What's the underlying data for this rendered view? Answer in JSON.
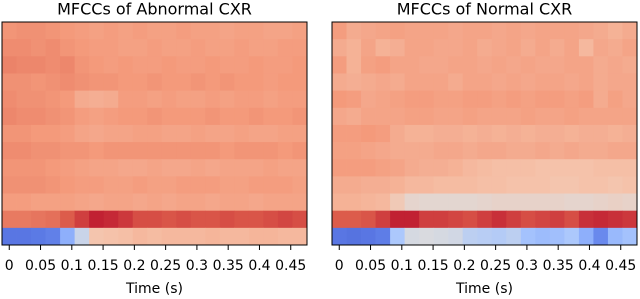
{
  "chart_data": [
    {
      "type": "heatmap",
      "title": "MFCCs of Abnormal CXR",
      "xlabel": "Time (s)",
      "colormap": "coolwarm",
      "clim": [
        0,
        1
      ],
      "xlim": [
        -0.0116,
        0.476
      ],
      "xticks": [
        0,
        0.05,
        0.1,
        0.15,
        0.2,
        0.25,
        0.3,
        0.35,
        0.4,
        0.45
      ],
      "values": [
        [
          0.76,
          0.77,
          0.77,
          0.76,
          0.75,
          0.74,
          0.73,
          0.74,
          0.73,
          0.74,
          0.73,
          0.73,
          0.74,
          0.73,
          0.73,
          0.72,
          0.73,
          0.73,
          0.72,
          0.72,
          0.73
        ],
        [
          0.78,
          0.78,
          0.77,
          0.78,
          0.76,
          0.75,
          0.74,
          0.74,
          0.73,
          0.73,
          0.74,
          0.73,
          0.73,
          0.74,
          0.73,
          0.73,
          0.74,
          0.73,
          0.73,
          0.74,
          0.74
        ],
        [
          0.8,
          0.79,
          0.79,
          0.78,
          0.79,
          0.76,
          0.75,
          0.74,
          0.75,
          0.74,
          0.74,
          0.75,
          0.74,
          0.74,
          0.75,
          0.74,
          0.74,
          0.75,
          0.74,
          0.74,
          0.75
        ],
        [
          0.77,
          0.77,
          0.76,
          0.77,
          0.78,
          0.77,
          0.76,
          0.76,
          0.75,
          0.75,
          0.76,
          0.75,
          0.75,
          0.76,
          0.75,
          0.76,
          0.75,
          0.75,
          0.74,
          0.75,
          0.75
        ],
        [
          0.78,
          0.77,
          0.77,
          0.76,
          0.75,
          0.7,
          0.69,
          0.7,
          0.74,
          0.74,
          0.73,
          0.74,
          0.73,
          0.73,
          0.74,
          0.73,
          0.74,
          0.74,
          0.73,
          0.74,
          0.74
        ],
        [
          0.79,
          0.78,
          0.78,
          0.77,
          0.76,
          0.74,
          0.73,
          0.74,
          0.75,
          0.75,
          0.76,
          0.75,
          0.75,
          0.75,
          0.76,
          0.75,
          0.75,
          0.76,
          0.75,
          0.75,
          0.76
        ],
        [
          0.76,
          0.76,
          0.75,
          0.75,
          0.74,
          0.72,
          0.71,
          0.72,
          0.72,
          0.73,
          0.73,
          0.72,
          0.72,
          0.73,
          0.72,
          0.72,
          0.73,
          0.72,
          0.72,
          0.73,
          0.73
        ],
        [
          0.78,
          0.78,
          0.77,
          0.77,
          0.76,
          0.76,
          0.75,
          0.76,
          0.76,
          0.76,
          0.76,
          0.76,
          0.76,
          0.76,
          0.76,
          0.75,
          0.76,
          0.76,
          0.76,
          0.75,
          0.76
        ],
        [
          0.76,
          0.76,
          0.76,
          0.75,
          0.74,
          0.73,
          0.72,
          0.72,
          0.71,
          0.71,
          0.72,
          0.71,
          0.71,
          0.72,
          0.71,
          0.72,
          0.72,
          0.72,
          0.73,
          0.72,
          0.72
        ],
        [
          0.77,
          0.77,
          0.77,
          0.76,
          0.75,
          0.74,
          0.74,
          0.73,
          0.73,
          0.74,
          0.73,
          0.73,
          0.74,
          0.74,
          0.74,
          0.73,
          0.73,
          0.74,
          0.74,
          0.74,
          0.73
        ],
        [
          0.74,
          0.74,
          0.73,
          0.73,
          0.73,
          0.72,
          0.71,
          0.72,
          0.72,
          0.71,
          0.72,
          0.71,
          0.72,
          0.72,
          0.71,
          0.72,
          0.72,
          0.71,
          0.72,
          0.72,
          0.72
        ],
        [
          0.82,
          0.82,
          0.83,
          0.84,
          0.88,
          0.92,
          0.96,
          0.95,
          0.93,
          0.9,
          0.9,
          0.89,
          0.9,
          0.89,
          0.89,
          0.9,
          0.89,
          0.89,
          0.9,
          0.91,
          0.9
        ],
        [
          0.12,
          0.12,
          0.13,
          0.15,
          0.3,
          0.45,
          0.62,
          0.63,
          0.64,
          0.66,
          0.65,
          0.66,
          0.66,
          0.66,
          0.67,
          0.66,
          0.66,
          0.67,
          0.67,
          0.66,
          0.66
        ]
      ]
    },
    {
      "type": "heatmap",
      "title": "MFCCs of Normal CXR",
      "xlabel": "Time (s)",
      "colormap": "coolwarm",
      "clim": [
        0,
        1
      ],
      "xlim": [
        -0.0116,
        0.476
      ],
      "xticks": [
        0,
        0.05,
        0.1,
        0.15,
        0.2,
        0.25,
        0.3,
        0.35,
        0.4,
        0.45
      ],
      "values": [
        [
          0.74,
          0.7,
          0.71,
          0.72,
          0.73,
          0.72,
          0.72,
          0.72,
          0.71,
          0.72,
          0.72,
          0.71,
          0.72,
          0.71,
          0.72,
          0.72,
          0.72,
          0.71,
          0.7,
          0.68,
          0.7
        ],
        [
          0.7,
          0.68,
          0.72,
          0.68,
          0.69,
          0.72,
          0.72,
          0.71,
          0.71,
          0.72,
          0.7,
          0.71,
          0.72,
          0.7,
          0.72,
          0.7,
          0.72,
          0.66,
          0.71,
          0.7,
          0.72
        ],
        [
          0.74,
          0.68,
          0.73,
          0.74,
          0.72,
          0.72,
          0.71,
          0.71,
          0.72,
          0.72,
          0.71,
          0.72,
          0.71,
          0.72,
          0.71,
          0.71,
          0.72,
          0.72,
          0.7,
          0.71,
          0.7
        ],
        [
          0.7,
          0.69,
          0.7,
          0.71,
          0.7,
          0.72,
          0.72,
          0.72,
          0.7,
          0.72,
          0.72,
          0.71,
          0.72,
          0.71,
          0.72,
          0.72,
          0.71,
          0.72,
          0.7,
          0.71,
          0.71
        ],
        [
          0.75,
          0.74,
          0.71,
          0.72,
          0.73,
          0.74,
          0.74,
          0.73,
          0.73,
          0.74,
          0.74,
          0.73,
          0.74,
          0.73,
          0.74,
          0.74,
          0.73,
          0.74,
          0.7,
          0.73,
          0.71
        ],
        [
          0.71,
          0.7,
          0.72,
          0.72,
          0.72,
          0.73,
          0.73,
          0.72,
          0.72,
          0.73,
          0.72,
          0.72,
          0.72,
          0.73,
          0.72,
          0.72,
          0.73,
          0.72,
          0.72,
          0.72,
          0.72
        ],
        [
          0.74,
          0.74,
          0.75,
          0.74,
          0.7,
          0.68,
          0.68,
          0.69,
          0.69,
          0.68,
          0.69,
          0.68,
          0.69,
          0.68,
          0.69,
          0.69,
          0.68,
          0.69,
          0.69,
          0.68,
          0.69
        ],
        [
          0.73,
          0.73,
          0.72,
          0.71,
          0.7,
          0.7,
          0.7,
          0.71,
          0.71,
          0.7,
          0.71,
          0.71,
          0.7,
          0.7,
          0.71,
          0.7,
          0.71,
          0.7,
          0.7,
          0.71,
          0.71
        ],
        [
          0.74,
          0.74,
          0.74,
          0.73,
          0.72,
          0.7,
          0.69,
          0.69,
          0.68,
          0.66,
          0.65,
          0.64,
          0.64,
          0.64,
          0.63,
          0.63,
          0.63,
          0.63,
          0.64,
          0.64,
          0.64
        ],
        [
          0.7,
          0.7,
          0.69,
          0.69,
          0.68,
          0.66,
          0.66,
          0.65,
          0.65,
          0.65,
          0.64,
          0.64,
          0.63,
          0.63,
          0.63,
          0.62,
          0.62,
          0.63,
          0.63,
          0.62,
          0.63
        ],
        [
          0.68,
          0.68,
          0.67,
          0.66,
          0.6,
          0.54,
          0.53,
          0.53,
          0.53,
          0.53,
          0.54,
          0.55,
          0.55,
          0.55,
          0.55,
          0.55,
          0.54,
          0.54,
          0.55,
          0.56,
          0.55
        ],
        [
          0.88,
          0.88,
          0.89,
          0.92,
          0.96,
          0.96,
          0.92,
          0.92,
          0.91,
          0.9,
          0.92,
          0.94,
          0.92,
          0.9,
          0.91,
          0.92,
          0.9,
          0.94,
          0.95,
          0.94,
          0.93
        ],
        [
          0.12,
          0.11,
          0.12,
          0.14,
          0.38,
          0.48,
          0.49,
          0.48,
          0.47,
          0.42,
          0.41,
          0.4,
          0.42,
          0.36,
          0.34,
          0.35,
          0.38,
          0.3,
          0.18,
          0.33,
          0.36
        ]
      ]
    }
  ]
}
